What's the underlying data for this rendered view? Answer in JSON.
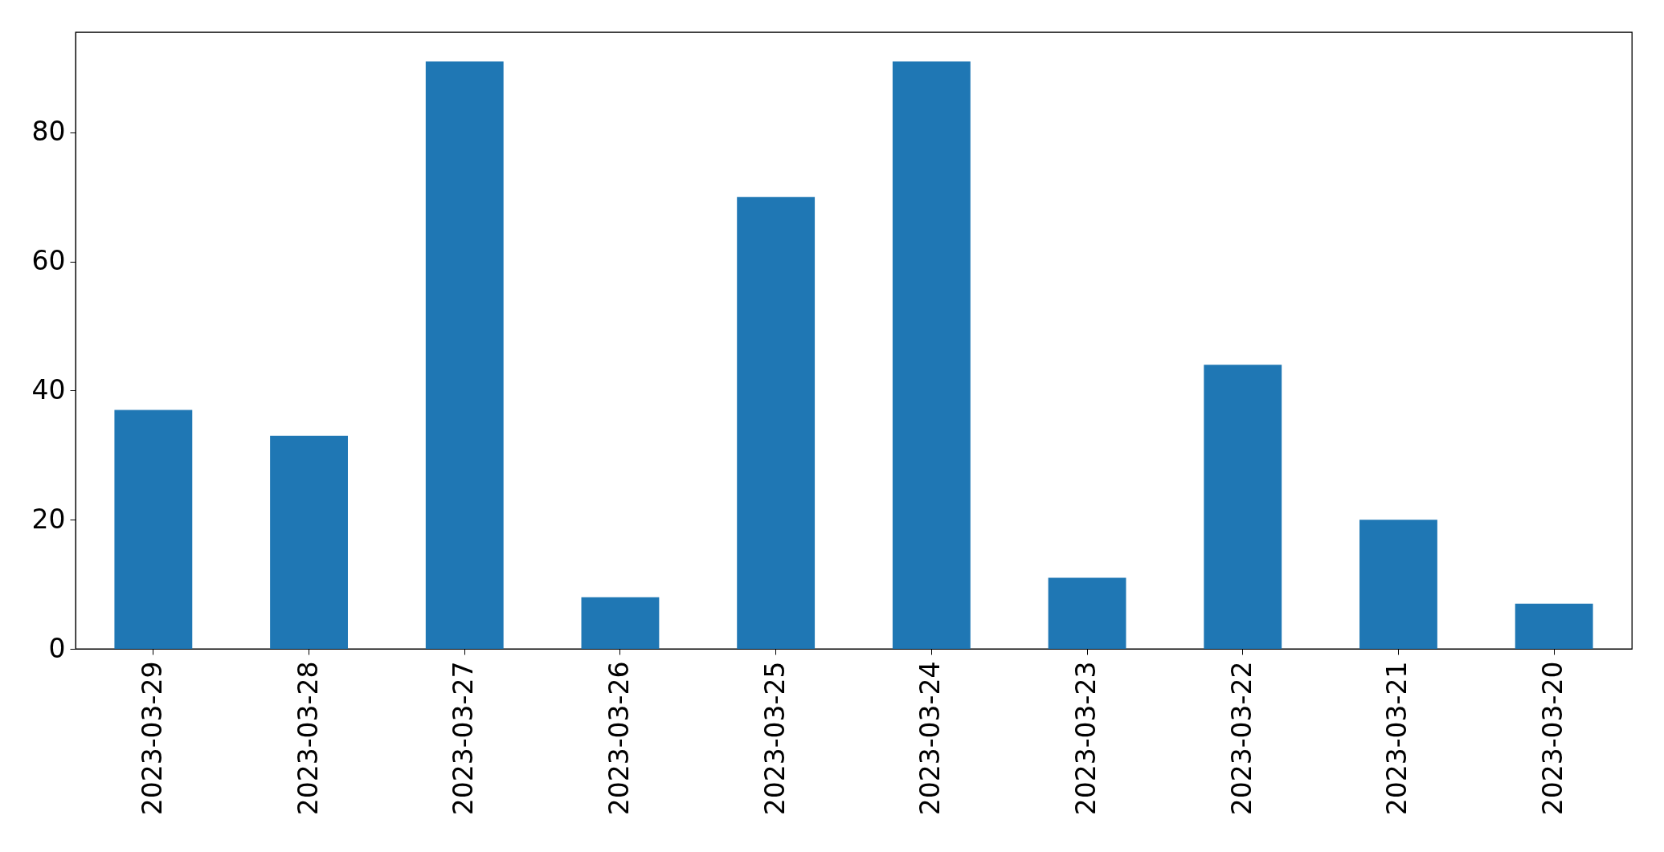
{
  "chart_data": {
    "type": "bar",
    "categories": [
      "2023-03-29",
      "2023-03-28",
      "2023-03-27",
      "2023-03-26",
      "2023-03-25",
      "2023-03-24",
      "2023-03-23",
      "2023-03-22",
      "2023-03-21",
      "2023-03-20"
    ],
    "values": [
      37,
      33,
      91,
      8,
      70,
      91,
      11,
      44,
      20,
      7
    ],
    "color": "#1f77b4",
    "ylim": [
      0,
      95.55
    ],
    "yticks": [
      0,
      20,
      40,
      60,
      80
    ],
    "grid": false
  }
}
